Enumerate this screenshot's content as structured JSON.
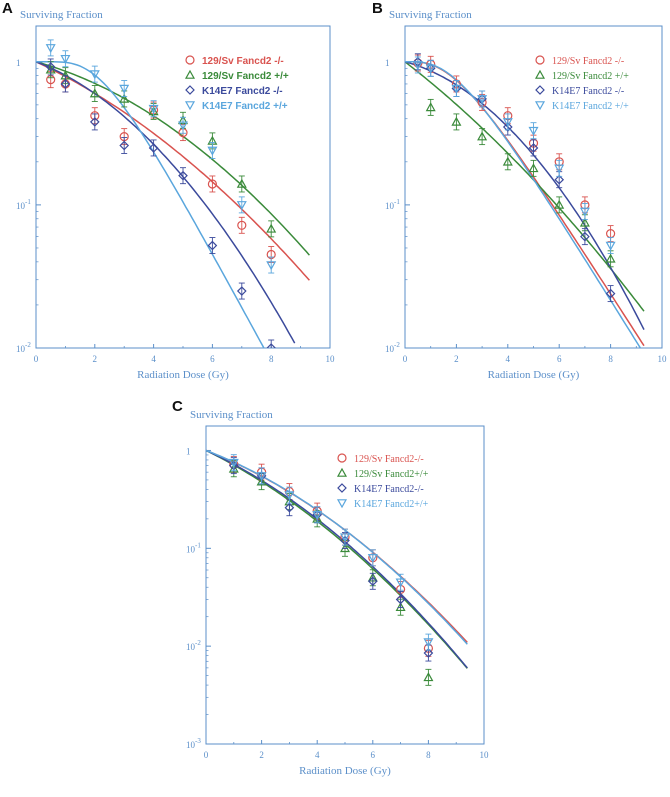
{
  "colors": {
    "axis": "#5b8fc9",
    "s129_ko": "#d9534f",
    "s129_wt": "#3a8a3a",
    "k14_ko": "#3b4a9c",
    "k14_wt": "#5aa6dd"
  },
  "chart_data": [
    {
      "panel": "A",
      "type": "scatter",
      "title": "Surviving Fraction",
      "xlabel": "Radiation Dose (Gy)",
      "ylabel": "Surviving Fraction",
      "xlim": [
        0,
        10
      ],
      "ylim_log10": [
        -2,
        0.25
      ],
      "x_ticks": [
        "0",
        "2",
        "4",
        "6",
        "8",
        "10"
      ],
      "y_ticks": [
        {
          "mant": "1",
          "exp": ""
        },
        {
          "mant": "10",
          "exp": "-1"
        },
        {
          "mant": "10",
          "exp": "-2"
        }
      ],
      "legend_style": "sans",
      "legend_position": "top-right",
      "series": [
        {
          "name": "129/Sv Fancd2 -/-",
          "key": "s129_ko",
          "marker": "circle",
          "points": [
            [
              0.5,
              0.75
            ],
            [
              1,
              0.7
            ],
            [
              2,
              0.42
            ],
            [
              3,
              0.3
            ],
            [
              4,
              0.46
            ],
            [
              5,
              0.32
            ],
            [
              6,
              0.14
            ],
            [
              7,
              0.072
            ],
            [
              8,
              0.045
            ]
          ],
          "curve": {
            "type": "lq",
            "alpha": 0.22,
            "beta": 0.017,
            "xmax": 9.3
          }
        },
        {
          "name": "129/Sv Fancd2 +/+",
          "key": "s129_wt",
          "marker": "triangle-up",
          "points": [
            [
              0.5,
              0.88
            ],
            [
              1,
              0.8
            ],
            [
              2,
              0.6
            ],
            [
              3,
              0.55
            ],
            [
              4,
              0.45
            ],
            [
              5,
              0.39
            ],
            [
              6,
              0.28
            ],
            [
              7,
              0.14
            ],
            [
              8,
              0.068
            ]
          ],
          "curve": {
            "type": "lq",
            "alpha": 0.13,
            "beta": 0.022,
            "xmax": 9.3
          }
        },
        {
          "name": "K14E7 Fancd2 -/-",
          "key": "k14_ko",
          "marker": "diamond",
          "points": [
            [
              0.5,
              0.92
            ],
            [
              1,
              0.7
            ],
            [
              2,
              0.38
            ],
            [
              3,
              0.26
            ],
            [
              4,
              0.25
            ],
            [
              5,
              0.16
            ],
            [
              6,
              0.052
            ],
            [
              7,
              0.025
            ],
            [
              8,
              0.01
            ]
          ],
          "curve": {
            "type": "lq",
            "alpha": 0.18,
            "beta": 0.038,
            "xmax": 8.8
          }
        },
        {
          "name": "K14E7 Fancd2 +/+",
          "key": "k14_wt",
          "marker": "triangle-down",
          "points": [
            [
              0.5,
              1.25
            ],
            [
              1,
              1.05
            ],
            [
              2,
              0.82
            ],
            [
              3,
              0.65
            ],
            [
              4,
              0.47
            ],
            [
              5,
              0.36
            ],
            [
              6,
              0.24
            ],
            [
              7,
              0.1
            ],
            [
              8,
              0.038
            ]
          ],
          "curve": {
            "type": "sh",
            "d0": 1.15,
            "n": 8.5,
            "xmax": 8.5
          }
        }
      ],
      "legend_labels": [
        "129/Sv Fancd2 -/-",
        "129/Sv Fancd2 +/+",
        "K14E7 Fancd2 -/-",
        "K14E7 Fancd2 +/+"
      ]
    },
    {
      "panel": "B",
      "type": "scatter",
      "title": "Surviving Fraction",
      "xlabel": "Radiation Dose (Gy)",
      "ylabel": "Surviving Fraction",
      "xlim": [
        0,
        10
      ],
      "ylim_log10": [
        -2,
        0.25
      ],
      "x_ticks": [
        "0",
        "2",
        "4",
        "6",
        "8",
        "10"
      ],
      "y_ticks": [
        {
          "mant": "1",
          "exp": ""
        },
        {
          "mant": "10",
          "exp": "-1"
        },
        {
          "mant": "10",
          "exp": "-2"
        }
      ],
      "legend_style": "serif",
      "legend_position": "top-right",
      "series": [
        {
          "name": "129/Sv Fancd2 -/-",
          "key": "s129_ko",
          "marker": "circle",
          "points": [
            [
              0.5,
              0.98
            ],
            [
              1,
              0.96
            ],
            [
              2,
              0.7
            ],
            [
              3,
              0.52
            ],
            [
              4,
              0.42
            ],
            [
              5,
              0.27
            ],
            [
              6,
              0.2
            ],
            [
              7,
              0.1
            ],
            [
              8,
              0.063
            ]
          ],
          "curve": {
            "type": "sh",
            "d0": 1.55,
            "n": 4.2,
            "xmax": 9.3
          }
        },
        {
          "name": "129/Sv Fancd2 +/+",
          "key": "s129_wt",
          "marker": "triangle-up",
          "points": [
            [
              1,
              0.48
            ],
            [
              2,
              0.38
            ],
            [
              3,
              0.3
            ],
            [
              4,
              0.2
            ],
            [
              5,
              0.18
            ],
            [
              6,
              0.1
            ],
            [
              7,
              0.075
            ],
            [
              8,
              0.042
            ]
          ],
          "curve": {
            "type": "lq",
            "alpha": 0.32,
            "beta": 0.012,
            "xmax": 9.3
          }
        },
        {
          "name": "K14E7 Fancd2 -/-",
          "key": "k14_ko",
          "marker": "diamond",
          "points": [
            [
              0.5,
              1.0
            ],
            [
              1,
              0.9
            ],
            [
              2,
              0.65
            ],
            [
              3,
              0.55
            ],
            [
              4,
              0.35
            ],
            [
              5,
              0.25
            ],
            [
              6,
              0.15
            ],
            [
              7,
              0.06
            ],
            [
              8,
              0.024
            ]
          ],
          "curve": {
            "type": "lq",
            "alpha": 0.11,
            "beta": 0.038,
            "xmax": 9.3
          }
        },
        {
          "name": "K14E7 Fancd2 +/+",
          "key": "k14_wt",
          "marker": "triangle-down",
          "points": [
            [
              0.5,
              0.95
            ],
            [
              1,
              0.9
            ],
            [
              2,
              0.65
            ],
            [
              3,
              0.55
            ],
            [
              4,
              0.38
            ],
            [
              5,
              0.33
            ],
            [
              6,
              0.18
            ],
            [
              7,
              0.09
            ],
            [
              8,
              0.052
            ]
          ],
          "curve": {
            "type": "sh",
            "d0": 1.5,
            "n": 4.5,
            "xmax": 9.3
          }
        }
      ],
      "legend_labels": [
        "129/Sv Fancd2 -/-",
        "129/Sv Fancd2 +/+",
        "K14E7 Fancd2 -/-",
        "K14E7 Fancd2 +/+"
      ]
    },
    {
      "panel": "C",
      "type": "scatter",
      "title": "Surviving Fraction",
      "xlabel": "Radiation Dose (Gy)",
      "ylabel": "Surviving Fraction",
      "xlim": [
        0,
        10
      ],
      "ylim_log10": [
        -3,
        0.25
      ],
      "x_ticks": [
        "0",
        "2",
        "4",
        "6",
        "8",
        "10"
      ],
      "y_ticks": [
        {
          "mant": "1",
          "exp": ""
        },
        {
          "mant": "10",
          "exp": "-1"
        },
        {
          "mant": "10",
          "exp": "-2"
        },
        {
          "mant": "10",
          "exp": "-3"
        }
      ],
      "legend_style": "serif",
      "legend_position": "top-right",
      "series": [
        {
          "name": "129/Sv Fancd2-/-",
          "key": "s129_ko",
          "marker": "circle",
          "points": [
            [
              1,
              0.72
            ],
            [
              2,
              0.6
            ],
            [
              3,
              0.38
            ],
            [
              4,
              0.24
            ],
            [
              5,
              0.13
            ],
            [
              6,
              0.08
            ],
            [
              7,
              0.038
            ],
            [
              8,
              0.0095
            ]
          ],
          "curve": {
            "type": "lq",
            "alpha": 0.255,
            "beta": 0.024,
            "xmax": 9.4
          }
        },
        {
          "name": "129/Sv Fancd2+/+",
          "key": "s129_wt",
          "marker": "triangle-up",
          "points": [
            [
              1,
              0.65
            ],
            [
              2,
              0.48
            ],
            [
              3,
              0.3
            ],
            [
              4,
              0.2
            ],
            [
              5,
              0.1
            ],
            [
              6,
              0.05
            ],
            [
              7,
              0.025
            ],
            [
              8,
              0.0048
            ]
          ],
          "curve": {
            "type": "lq",
            "alpha": 0.32,
            "beta": 0.024,
            "xmax": 9.4
          }
        },
        {
          "name": "K14E7 Fancd2-/-",
          "key": "k14_ko",
          "marker": "diamond",
          "points": [
            [
              1,
              0.7
            ],
            [
              2,
              0.55
            ],
            [
              3,
              0.26
            ],
            [
              4,
              0.22
            ],
            [
              5,
              0.12
            ],
            [
              6,
              0.046
            ],
            [
              7,
              0.03
            ],
            [
              8,
              0.0085
            ]
          ],
          "curve": {
            "type": "lq",
            "alpha": 0.3,
            "beta": 0.026,
            "xmax": 9.4
          }
        },
        {
          "name": "K14E7 Fancd2+/+",
          "key": "k14_wt",
          "marker": "triangle-down",
          "points": [
            [
              1,
              0.75
            ],
            [
              2,
              0.55
            ],
            [
              3,
              0.35
            ],
            [
              4,
              0.22
            ],
            [
              5,
              0.13
            ],
            [
              6,
              0.08
            ],
            [
              7,
              0.045
            ],
            [
              8,
              0.011
            ]
          ],
          "curve": {
            "type": "lq",
            "alpha": 0.25,
            "beta": 0.025,
            "xmax": 9.4
          }
        }
      ],
      "legend_labels": [
        "129/Sv Fancd2-/-",
        "129/Sv Fancd2+/+",
        "K14E7 Fancd2-/-",
        "K14E7 Fancd2+/+"
      ]
    }
  ]
}
